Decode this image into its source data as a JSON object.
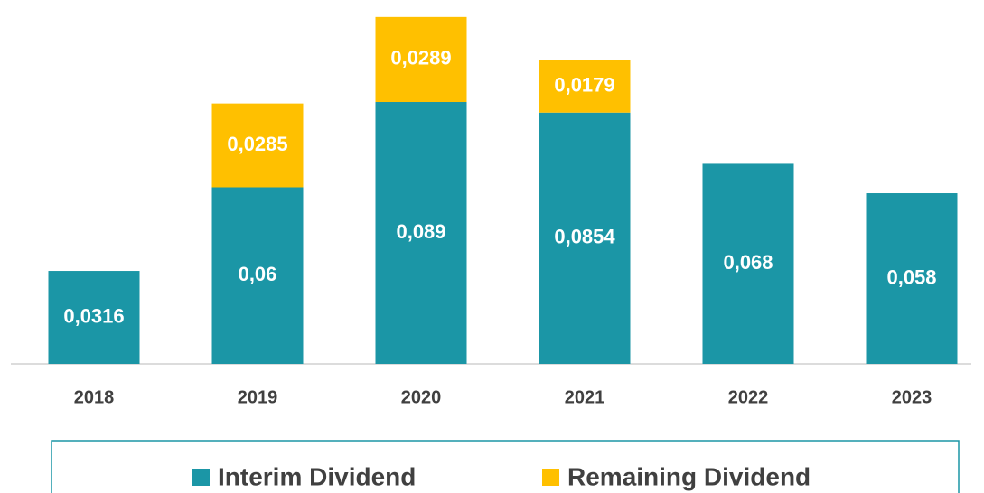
{
  "chart_data": {
    "type": "stacked_bar",
    "categories": [
      "2018",
      "2019",
      "2020",
      "2021",
      "2022",
      "2023"
    ],
    "series": [
      {
        "name": "Interim Dividend",
        "color": "#1b96a6",
        "values": [
          0.0316,
          0.06,
          0.089,
          0.0854,
          0.068,
          0.058
        ],
        "value_labels": [
          "0,0316",
          "0,06",
          "0,089",
          "0,0854",
          "0,068",
          "0,058"
        ]
      },
      {
        "name": "Remaining Dividend",
        "color": "#ffc000",
        "values": [
          null,
          0.0285,
          0.0289,
          0.0179,
          null,
          null
        ],
        "value_labels": [
          null,
          "0,0285",
          "0,0289",
          "0,0179",
          null,
          null
        ]
      }
    ],
    "ylim": [
      0,
      0.12
    ]
  }
}
